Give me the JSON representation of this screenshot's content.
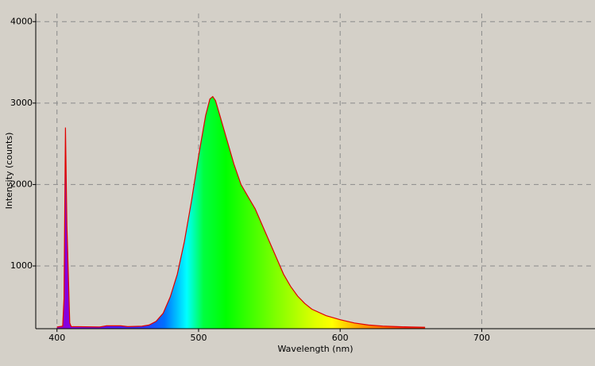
{
  "chart_data": {
    "type": "area",
    "x_label": "Wavelength (nm)",
    "y_label": "Intensity (counts)",
    "x": [
      400,
      404,
      405,
      406,
      407,
      408,
      409,
      410,
      430,
      435,
      445,
      450,
      460,
      465,
      470,
      475,
      480,
      485,
      490,
      495,
      500,
      505,
      508,
      510,
      512,
      515,
      520,
      525,
      530,
      535,
      540,
      545,
      550,
      555,
      560,
      565,
      570,
      575,
      580,
      590,
      600,
      610,
      620,
      630,
      640,
      650,
      660
    ],
    "values": [
      250,
      260,
      600,
      2700,
      1500,
      900,
      300,
      255,
      250,
      265,
      265,
      255,
      260,
      275,
      320,
      420,
      620,
      900,
      1300,
      1800,
      2350,
      2850,
      3050,
      3080,
      3030,
      2850,
      2550,
      2250,
      2000,
      1850,
      1700,
      1500,
      1300,
      1100,
      900,
      750,
      630,
      540,
      470,
      390,
      340,
      300,
      275,
      262,
      255,
      250,
      248
    ],
    "color": "#e00000",
    "xlim": [
      385,
      780
    ],
    "ylim": [
      230,
      4100
    ],
    "xticks": [
      400,
      500,
      600,
      700
    ],
    "yticks": [
      1000,
      2000,
      3000,
      4000
    ],
    "grid": true
  }
}
